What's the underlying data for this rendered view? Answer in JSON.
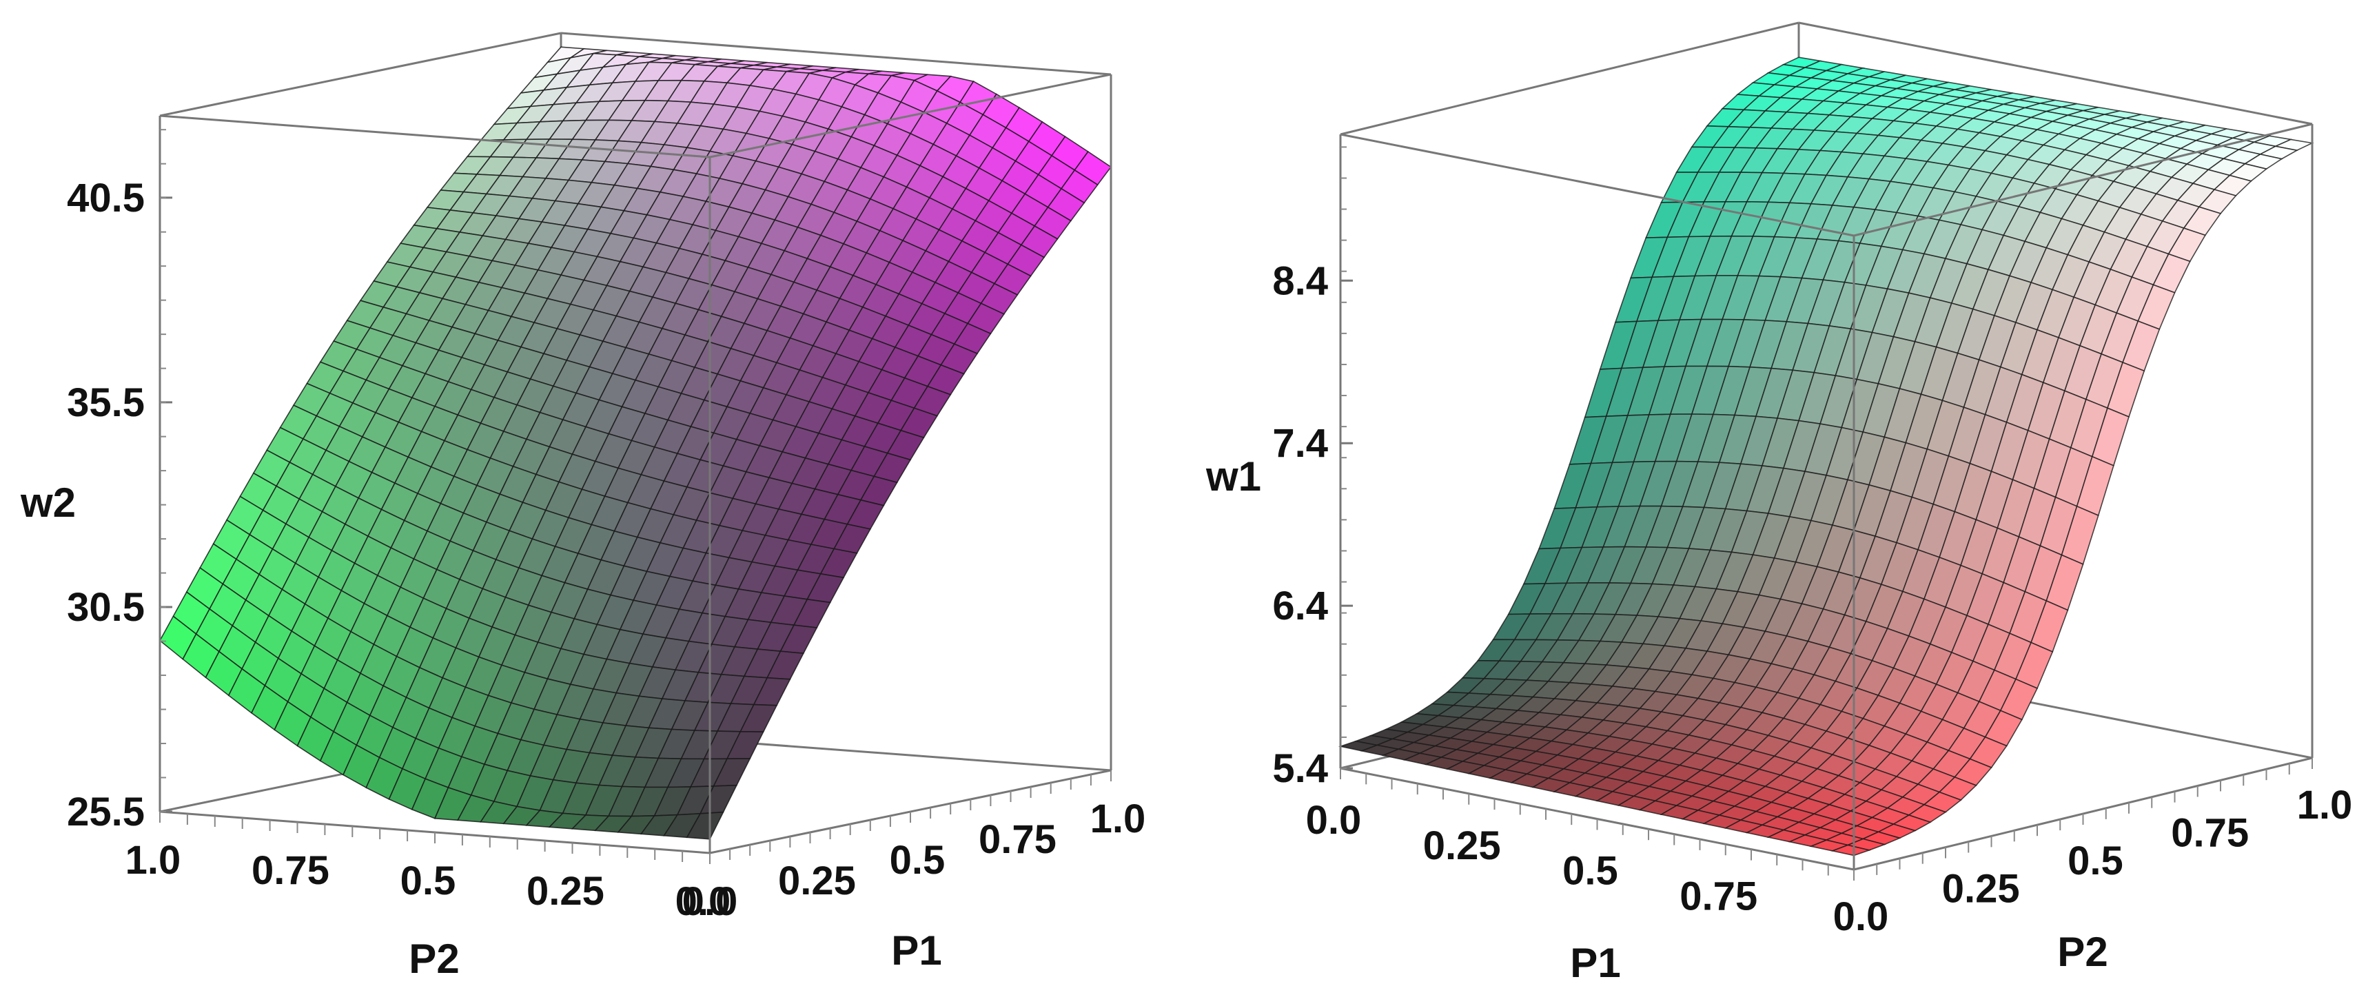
{
  "chart_data": [
    {
      "type": "surface3d",
      "title": "",
      "zlabel": "w2",
      "axis1_label": "P2",
      "axis2_label": "P1",
      "z_ticks": [
        "25.5",
        "30.5",
        "35.5",
        "40.5"
      ],
      "axis1_ticks": [
        "1.0",
        "0.75",
        "0.5",
        "0.25",
        "0.0"
      ],
      "axis2_ticks": [
        "0.0",
        "0.25",
        "0.5",
        "0.75",
        "1.0"
      ],
      "zlim": [
        25.5,
        42.5
      ],
      "corner_w2": {
        "P2=1,P1=0": 29.5,
        "P2=0,P1=0": 25.5,
        "P2=1,P1=1": 42.5,
        "P2=0,P1=1": 40.5
      },
      "colors": {
        "low_a": "#3aff6a",
        "low_b": "#3a3a3a",
        "high_a": "#ffffff",
        "high_b": "#ff3cff"
      }
    },
    {
      "type": "surface3d",
      "title": "",
      "zlabel": "w1",
      "axis1_label": "P1",
      "axis2_label": "P2",
      "z_ticks": [
        "5.4",
        "6.4",
        "7.4",
        "8.4"
      ],
      "axis1_ticks": [
        "0.0",
        "0.25",
        "0.5",
        "0.75"
      ],
      "axis2_ticks": [
        "0.0",
        "0.25",
        "0.5",
        "0.75",
        "1.0"
      ],
      "zlim": [
        5.4,
        9.3
      ],
      "corner_w1": {
        "P1=0,P2=0": 5.5,
        "P1=1,P2=0": 5.45,
        "P1=0,P2=1": 9.2,
        "P1=1,P2=1": 9.3
      },
      "colors": {
        "low_a": "#3a3a3a",
        "low_b": "#ff4a55",
        "high_a": "#2fffc8",
        "high_b": "#ffffff"
      }
    }
  ]
}
